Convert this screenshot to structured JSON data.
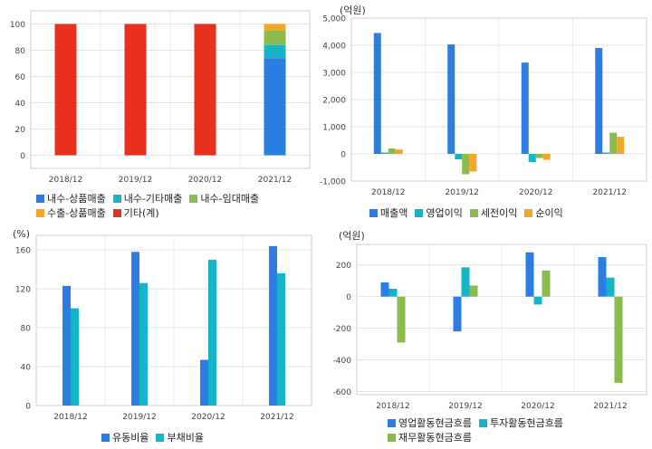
{
  "chart_data": [
    {
      "type": "bar",
      "stacked": true,
      "unit": "",
      "categories": [
        "2018/12",
        "2019/12",
        "2020/12",
        "2021/12"
      ],
      "ylim": [
        -10,
        110
      ],
      "yticks": [
        0,
        20,
        40,
        60,
        80,
        100
      ],
      "grid": true,
      "legend_position": "bottom",
      "series": [
        {
          "name": "내수-상품매출",
          "color": "#2b7de1",
          "values": [
            0,
            0,
            0,
            74
          ]
        },
        {
          "name": "내수-기타매출",
          "color": "#16b4c8",
          "values": [
            0,
            0,
            0,
            10
          ]
        },
        {
          "name": "내수-임대매출",
          "color": "#8bbb4b",
          "values": [
            0,
            0,
            0,
            11
          ]
        },
        {
          "name": "수출-상품매출",
          "color": "#f5a623",
          "values": [
            0,
            0,
            0,
            5
          ]
        },
        {
          "name": "기타(계)",
          "color": "#e8301c",
          "values": [
            100,
            100,
            100,
            0
          ]
        }
      ],
      "legend_rows": [
        [
          0,
          1,
          2
        ],
        [
          3,
          4
        ]
      ]
    },
    {
      "type": "bar",
      "unit": "(억원)",
      "categories": [
        "2018/12",
        "2019/12",
        "2020/12",
        "2021/12"
      ],
      "ylim": [
        -1000,
        5000
      ],
      "yticks": [
        -1000,
        0,
        1000,
        2000,
        3000,
        4000,
        5000
      ],
      "grid": true,
      "legend_position": "bottom",
      "series": [
        {
          "name": "매출액",
          "color": "#2b7de1",
          "values": [
            4450,
            4030,
            3360,
            3900
          ]
        },
        {
          "name": "영업이익",
          "color": "#16b4c8",
          "values": [
            50,
            -200,
            -300,
            50
          ]
        },
        {
          "name": "세전이익",
          "color": "#8bbb4b",
          "values": [
            200,
            -750,
            -150,
            780
          ]
        },
        {
          "name": "순이익",
          "color": "#f5a623",
          "values": [
            160,
            -650,
            -220,
            630
          ]
        }
      ],
      "legend_rows": [
        [
          0,
          1,
          2,
          3
        ]
      ]
    },
    {
      "type": "bar",
      "unit": "(%)",
      "categories": [
        "2018/12",
        "2019/12",
        "2020/12",
        "2021/12"
      ],
      "ylim": [
        0,
        175
      ],
      "yticks": [
        0,
        40,
        80,
        120,
        160
      ],
      "grid": true,
      "legend_position": "bottom",
      "series": [
        {
          "name": "유동비율",
          "color": "#2b7de1",
          "values": [
            123,
            158,
            47,
            164
          ]
        },
        {
          "name": "부채비율",
          "color": "#16b4c8",
          "values": [
            100,
            126,
            150,
            136
          ]
        }
      ],
      "legend_rows": [
        [
          0,
          1
        ]
      ]
    },
    {
      "type": "bar",
      "unit": "(억원)",
      "categories": [
        "2018/12",
        "2019/12",
        "2020/12",
        "2021/12"
      ],
      "ylim": [
        -620,
        330
      ],
      "yticks": [
        -600,
        -400,
        -200,
        0,
        200
      ],
      "grid": true,
      "legend_position": "bottom",
      "series": [
        {
          "name": "영업활동현금흐름",
          "color": "#2b7de1",
          "values": [
            90,
            -220,
            280,
            250
          ]
        },
        {
          "name": "투자활동현금흐름",
          "color": "#16b4c8",
          "values": [
            50,
            185,
            -50,
            120
          ]
        },
        {
          "name": "재무활동현금흐름",
          "color": "#8bbb4b",
          "values": [
            -290,
            70,
            165,
            -545
          ]
        }
      ],
      "legend_rows": [
        [
          0,
          1
        ],
        [
          2
        ]
      ]
    }
  ]
}
